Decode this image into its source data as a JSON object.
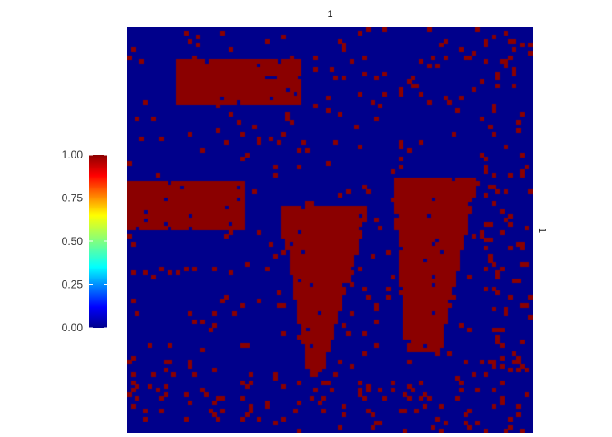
{
  "facet": {
    "top_strip": "1",
    "right_strip": "1"
  },
  "chart_data": {
    "type": "heatmap",
    "title": "",
    "xlabel": "",
    "ylabel": "",
    "values_domain": [
      0,
      1
    ],
    "legend": {
      "position": "left",
      "ticks": [
        "1.00",
        "0.75",
        "0.50",
        "0.25",
        "0.00"
      ],
      "tick_values": [
        1.0,
        0.75,
        0.5,
        0.25,
        0.0
      ],
      "colormap": "jet"
    },
    "colors": {
      "low": "#00008b",
      "high": "#8b0000"
    },
    "grid_size": [
      100,
      100
    ],
    "high_regions": [
      {
        "name": "upper-bar",
        "x": [
          12,
          42
        ],
        "y": [
          8,
          18
        ]
      },
      {
        "name": "left-bar",
        "x": [
          0,
          28
        ],
        "y": [
          38,
          49
        ]
      },
      {
        "name": "funnel-left",
        "x": [
          36,
          58
        ],
        "y": [
          44,
          85
        ]
      },
      {
        "name": "funnel-right",
        "x": [
          64,
          85
        ],
        "y": [
          37,
          79
        ]
      }
    ]
  }
}
